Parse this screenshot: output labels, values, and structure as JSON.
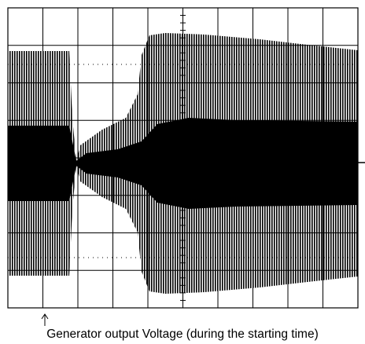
{
  "caption": "Generator output Voltage (during the starting time)"
}
